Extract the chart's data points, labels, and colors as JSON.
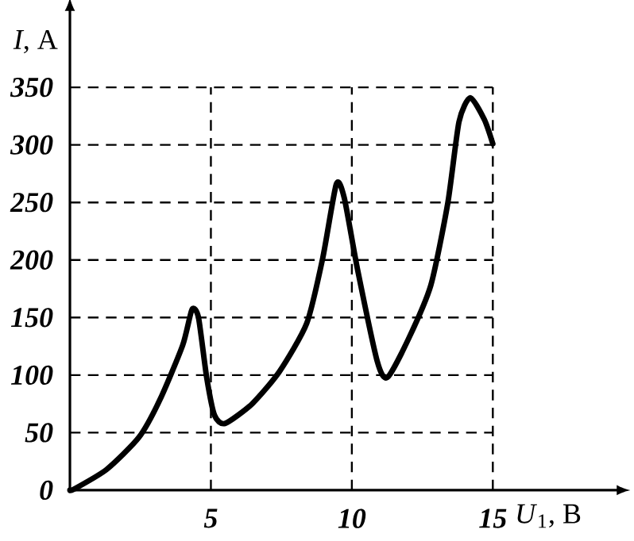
{
  "chart_data": {
    "type": "line",
    "xlabel": "*U*$_{1}$, В",
    "ylabel": "*I*, А",
    "x": [
      0,
      0.15,
      1.3,
      2.45,
      3.2,
      4.0,
      4.33,
      4.56,
      4.85,
      5.13,
      5.5,
      6.46,
      7.43,
      8.4,
      8.97,
      9.45,
      9.73,
      10.2,
      10.9,
      11.26,
      12.0,
      12.8,
      13.4,
      13.8,
      14.2,
      14.7,
      15.0
    ],
    "series": [
      {
        "color": "#000000",
        "values": [
          0,
          1,
          18,
          46,
          79,
          126,
          157,
          150,
          98,
          65,
          58,
          75,
          103,
          145,
          202,
          266,
          254,
          192,
          112,
          98,
          131,
          178,
          249,
          320,
          341,
          322,
          301
        ]
      }
    ],
    "xlim": [
      0,
      19.5
    ],
    "ylim": [
      0,
      419
    ],
    "xticks": [
      5,
      10,
      15
    ],
    "yticks": [
      0,
      50,
      100,
      150,
      200,
      250,
      300,
      350
    ],
    "grid": true,
    "line_style": "solid",
    "marker": "none"
  }
}
